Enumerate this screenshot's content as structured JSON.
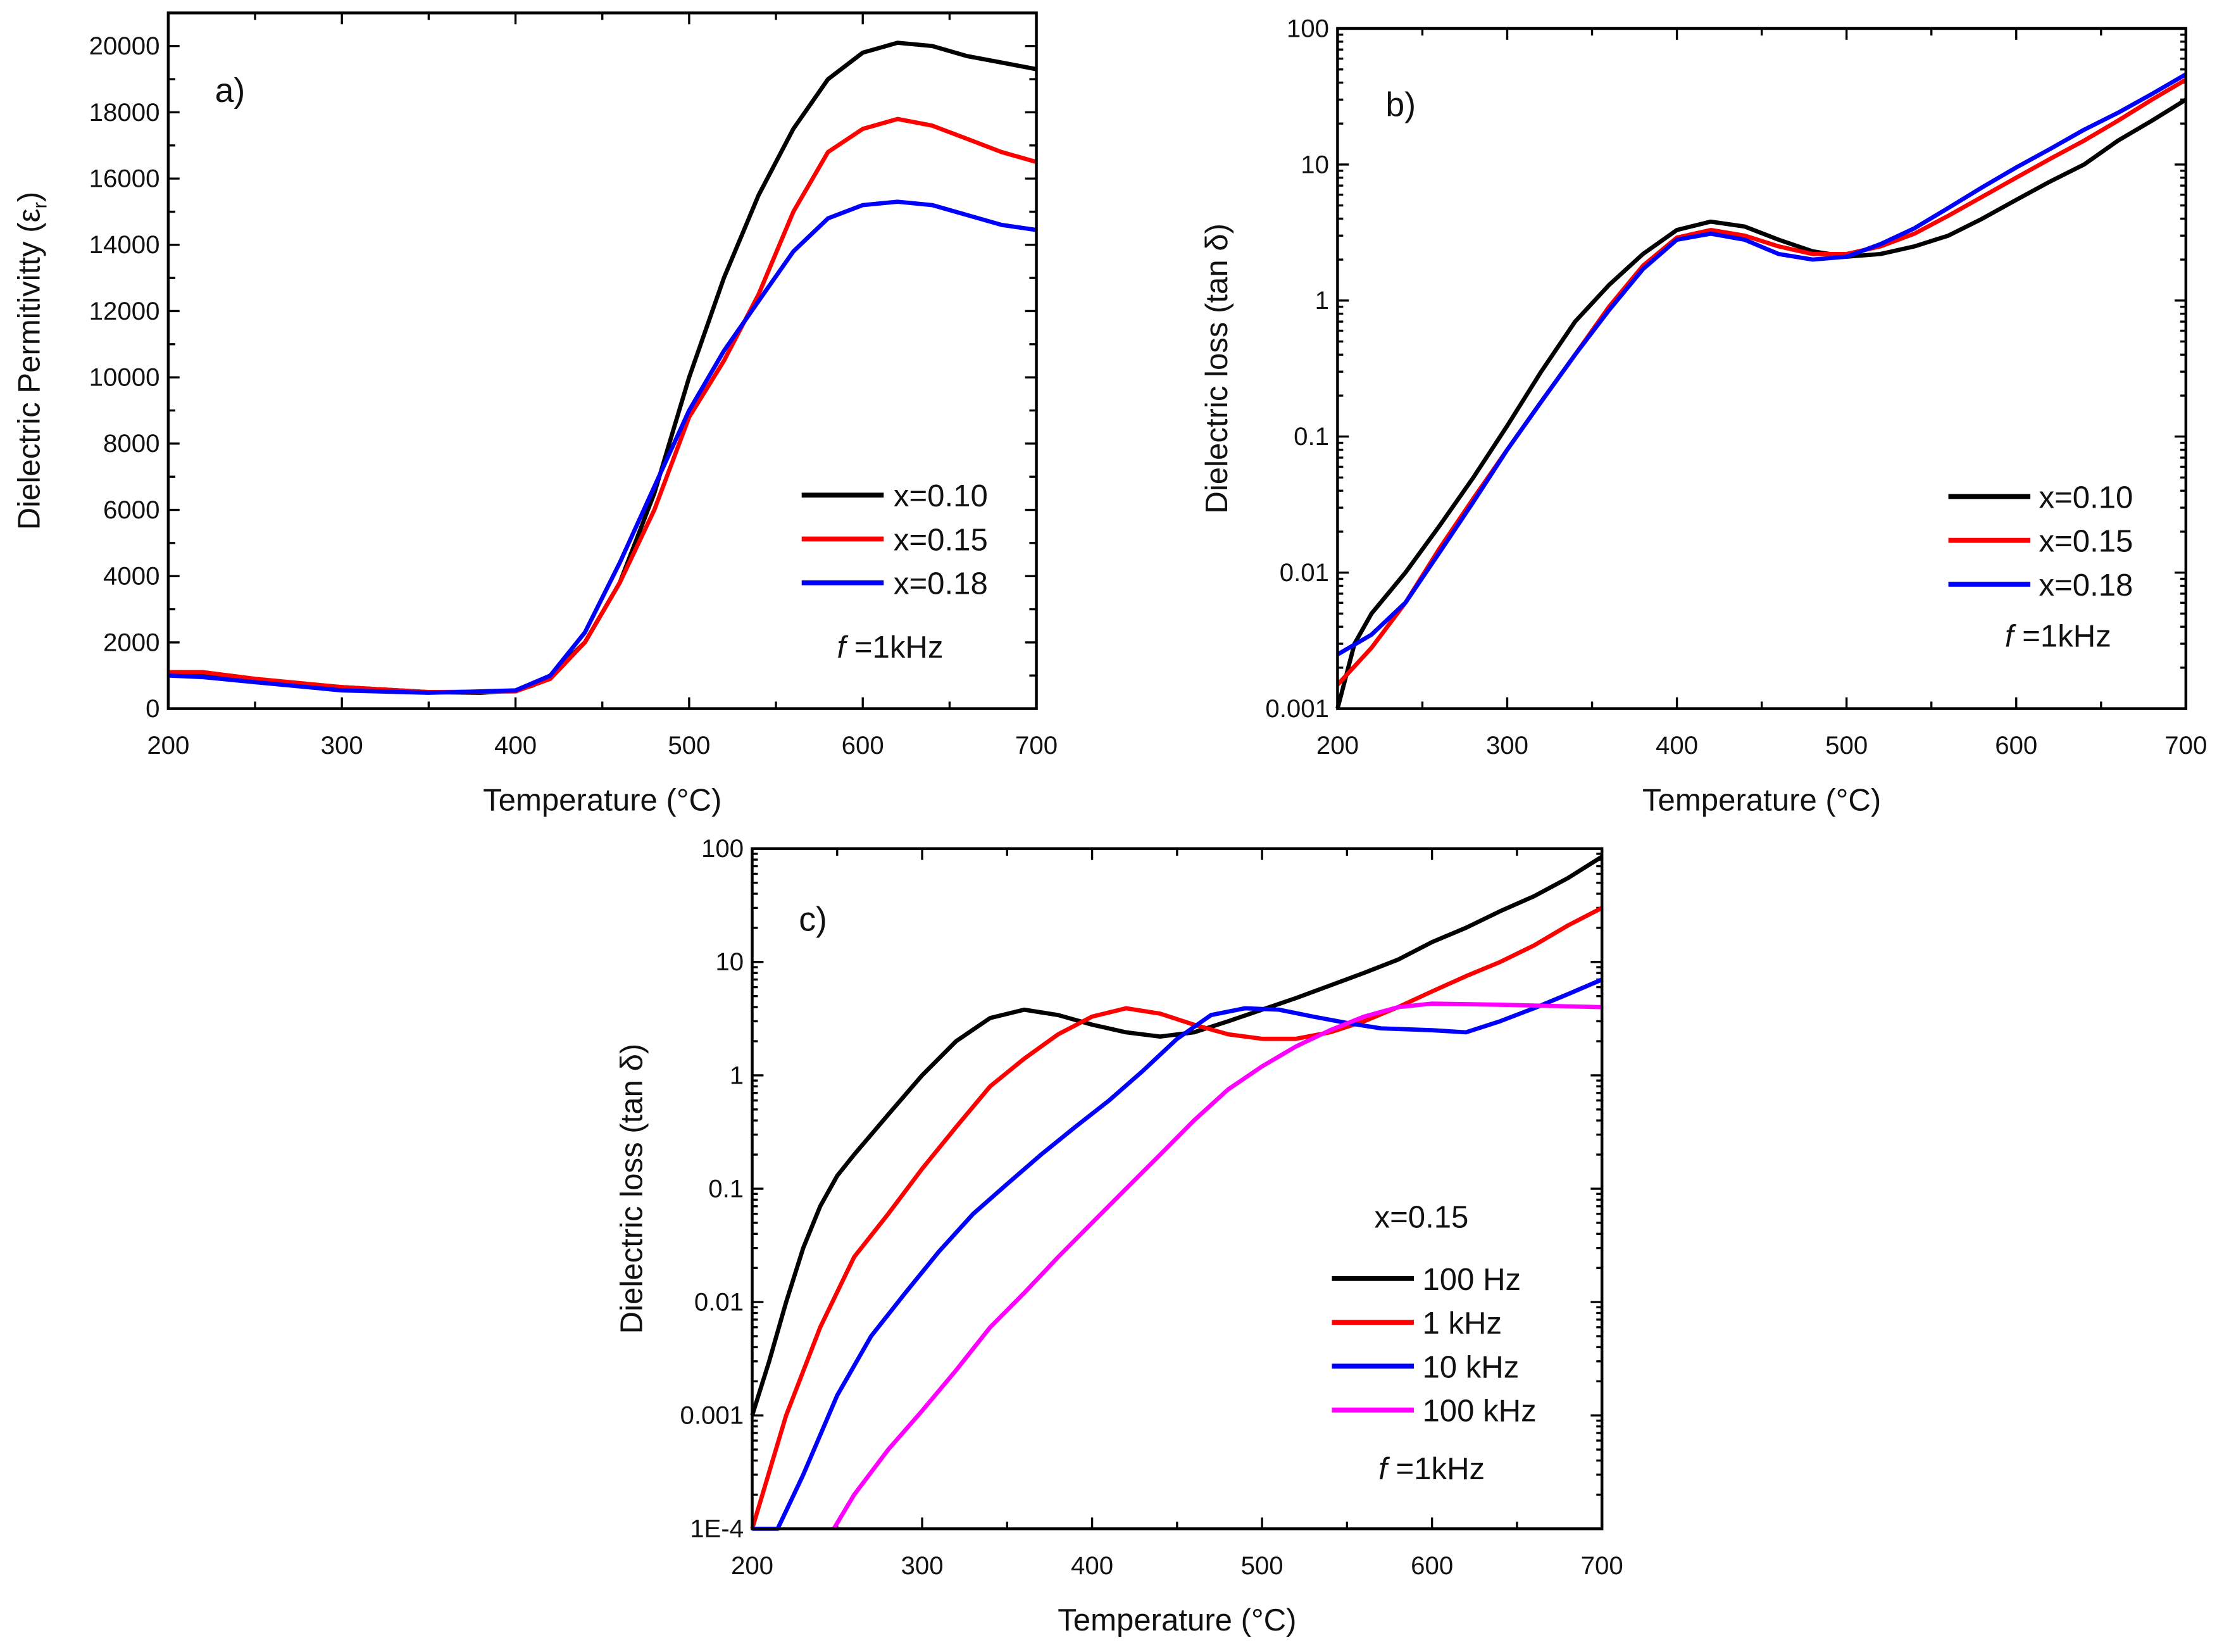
{
  "chart_data": [
    {
      "type": "line",
      "panel_label": "a)",
      "xlabel": "Temperature (°C)",
      "ylabel": "Dielectric Permitivitty (ε",
      "ylabel_sub": "r",
      "ylabel_end": ")",
      "xlim": [
        200,
        700
      ],
      "ylim": [
        0,
        21000
      ],
      "yscale": "linear",
      "xticks": [
        200,
        300,
        400,
        500,
        600,
        700
      ],
      "yticks": [
        0,
        2000,
        4000,
        6000,
        8000,
        10000,
        12000,
        14000,
        16000,
        18000,
        20000
      ],
      "ytick_labels": [
        "0",
        "2000",
        "4000",
        "6000",
        "8000",
        "10000",
        "12000",
        "14000",
        "16000",
        "18000",
        "20000"
      ],
      "legend_placement": "lower-right",
      "annotation": {
        "italic": "f",
        "text": " =1kHz"
      },
      "series": [
        {
          "name": "x=0.10",
          "color": "#000000",
          "x": [
            200,
            220,
            250,
            300,
            350,
            380,
            400,
            410,
            420,
            440,
            460,
            480,
            500,
            520,
            540,
            560,
            580,
            600,
            620,
            640,
            660,
            680,
            700
          ],
          "y": [
            1050,
            1050,
            850,
            650,
            500,
            480,
            550,
            700,
            1000,
            2000,
            3800,
            6500,
            10000,
            13000,
            15500,
            17500,
            19000,
            19800,
            20100,
            20000,
            19700,
            19500,
            19300
          ]
        },
        {
          "name": "x=0.15",
          "color": "#ff0000",
          "x": [
            200,
            220,
            250,
            300,
            350,
            400,
            420,
            440,
            460,
            480,
            500,
            520,
            540,
            560,
            580,
            600,
            620,
            640,
            660,
            680,
            700
          ],
          "y": [
            1100,
            1100,
            900,
            650,
            500,
            520,
            900,
            2000,
            3800,
            6000,
            8800,
            10500,
            12500,
            15000,
            16800,
            17500,
            17800,
            17600,
            17200,
            16800,
            16500
          ]
        },
        {
          "name": "x=0.18",
          "color": "#0000ff",
          "x": [
            200,
            220,
            250,
            300,
            350,
            400,
            420,
            440,
            460,
            480,
            500,
            520,
            540,
            560,
            580,
            600,
            620,
            640,
            660,
            680,
            700
          ],
          "y": [
            1000,
            950,
            800,
            550,
            480,
            550,
            1000,
            2300,
            4400,
            6700,
            9000,
            10800,
            12300,
            13800,
            14800,
            15200,
            15300,
            15200,
            14900,
            14600,
            14450
          ]
        }
      ]
    },
    {
      "type": "line",
      "panel_label": "b)",
      "xlabel": "Temperature (°C)",
      "ylabel": "Dielectric loss (tan δ)",
      "xlim": [
        200,
        700
      ],
      "ylim": [
        0.001,
        100
      ],
      "yscale": "log",
      "xticks": [
        200,
        300,
        400,
        500,
        600,
        700
      ],
      "yticks": [
        0.001,
        0.01,
        0.1,
        1,
        10,
        100
      ],
      "ytick_labels": [
        "0.001",
        "0.01",
        "0.1",
        "1",
        "10",
        "100"
      ],
      "legend_placement": "lower-right",
      "annotation": {
        "italic": "f",
        "text": " =1kHz"
      },
      "series": [
        {
          "name": "x=0.10",
          "color": "#000000",
          "x": [
            200,
            210,
            220,
            240,
            260,
            280,
            300,
            320,
            340,
            360,
            380,
            400,
            420,
            440,
            460,
            480,
            500,
            520,
            540,
            560,
            580,
            600,
            620,
            640,
            660,
            680,
            700
          ],
          "y": [
            0.001,
            0.003,
            0.005,
            0.01,
            0.022,
            0.05,
            0.12,
            0.3,
            0.7,
            1.3,
            2.2,
            3.3,
            3.8,
            3.5,
            2.8,
            2.3,
            2.1,
            2.2,
            2.5,
            3.0,
            4.0,
            5.5,
            7.5,
            10,
            15,
            21,
            30
          ]
        },
        {
          "name": "x=0.15",
          "color": "#ff0000",
          "x": [
            200,
            220,
            240,
            260,
            280,
            300,
            320,
            340,
            360,
            380,
            400,
            420,
            440,
            460,
            480,
            500,
            520,
            540,
            560,
            580,
            600,
            620,
            640,
            660,
            680,
            700
          ],
          "y": [
            0.0015,
            0.0028,
            0.006,
            0.015,
            0.035,
            0.08,
            0.18,
            0.4,
            0.9,
            1.8,
            2.9,
            3.3,
            3.0,
            2.5,
            2.2,
            2.2,
            2.5,
            3.1,
            4.2,
            5.8,
            8,
            11,
            15,
            21,
            30,
            42
          ]
        },
        {
          "name": "x=0.18",
          "color": "#0000ff",
          "x": [
            200,
            220,
            240,
            260,
            280,
            300,
            320,
            340,
            360,
            380,
            400,
            420,
            440,
            460,
            480,
            500,
            520,
            540,
            560,
            580,
            600,
            620,
            640,
            660,
            680,
            700
          ],
          "y": [
            0.0025,
            0.0035,
            0.006,
            0.014,
            0.033,
            0.08,
            0.18,
            0.4,
            0.85,
            1.7,
            2.8,
            3.1,
            2.8,
            2.2,
            2.0,
            2.1,
            2.6,
            3.4,
            4.8,
            6.8,
            9.5,
            13,
            18,
            24,
            33,
            46
          ]
        }
      ]
    },
    {
      "type": "line",
      "panel_label": "c)",
      "xlabel": "Temperature (°C)",
      "ylabel": "Dielectric loss (tan δ)",
      "xlim": [
        200,
        700
      ],
      "ylim": [
        0.0001,
        100
      ],
      "yscale": "log",
      "xticks": [
        200,
        300,
        400,
        500,
        600,
        700
      ],
      "yticks": [
        0.0001,
        0.001,
        0.01,
        0.1,
        1,
        10,
        100
      ],
      "ytick_labels": [
        "1E-4",
        "0.001",
        "0.01",
        "0.1",
        "1",
        "10",
        "100"
      ],
      "legend_title": "x=0.15",
      "legend_placement": "lower-right",
      "annotation": {
        "italic": "f",
        "text": " =1kHz"
      },
      "series": [
        {
          "name": "100 Hz",
          "color": "#000000",
          "x": [
            200,
            210,
            220,
            230,
            240,
            250,
            260,
            280,
            300,
            320,
            340,
            360,
            380,
            400,
            420,
            440,
            460,
            480,
            500,
            520,
            540,
            560,
            580,
            600,
            620,
            640,
            660,
            680,
            700
          ],
          "y": [
            0.001,
            0.003,
            0.01,
            0.03,
            0.07,
            0.13,
            0.2,
            0.45,
            1.0,
            2.0,
            3.2,
            3.8,
            3.4,
            2.8,
            2.4,
            2.2,
            2.4,
            3.0,
            3.8,
            4.8,
            6.2,
            8,
            10.5,
            15,
            20,
            28,
            38,
            55,
            85
          ]
        },
        {
          "name": "1 kHz",
          "color": "#ff0000",
          "x": [
            200,
            220,
            240,
            260,
            280,
            300,
            320,
            340,
            360,
            380,
            400,
            420,
            440,
            460,
            480,
            500,
            520,
            540,
            560,
            580,
            600,
            620,
            640,
            660,
            680,
            700
          ],
          "y": [
            0.0001,
            0.001,
            0.006,
            0.025,
            0.06,
            0.15,
            0.35,
            0.8,
            1.4,
            2.3,
            3.3,
            3.9,
            3.5,
            2.8,
            2.3,
            2.1,
            2.1,
            2.4,
            3.0,
            4.0,
            5.5,
            7.5,
            10,
            14,
            21,
            30
          ]
        },
        {
          "name": "10 kHz",
          "color": "#0000ff",
          "x": [
            200,
            215,
            230,
            250,
            270,
            290,
            310,
            330,
            350,
            370,
            390,
            410,
            430,
            450,
            470,
            490,
            510,
            530,
            550,
            570,
            600,
            620,
            640,
            660,
            680,
            700
          ],
          "y": [
            0.0001,
            0.0001,
            0.0003,
            0.0015,
            0.005,
            0.012,
            0.028,
            0.06,
            0.11,
            0.2,
            0.35,
            0.6,
            1.1,
            2.1,
            3.4,
            3.9,
            3.8,
            3.3,
            2.9,
            2.6,
            2.5,
            2.4,
            3.0,
            3.9,
            5.2,
            7.0
          ]
        },
        {
          "name": "100 kHz",
          "color": "#ff00ff",
          "x": [
            248,
            260,
            280,
            300,
            320,
            340,
            360,
            380,
            400,
            420,
            440,
            460,
            480,
            500,
            520,
            540,
            560,
            580,
            600,
            640,
            700
          ],
          "y": [
            0.0001,
            0.0002,
            0.0005,
            0.0011,
            0.0025,
            0.006,
            0.012,
            0.025,
            0.05,
            0.1,
            0.2,
            0.4,
            0.75,
            1.2,
            1.8,
            2.5,
            3.3,
            4.0,
            4.3,
            4.2,
            4.0
          ]
        }
      ]
    }
  ]
}
